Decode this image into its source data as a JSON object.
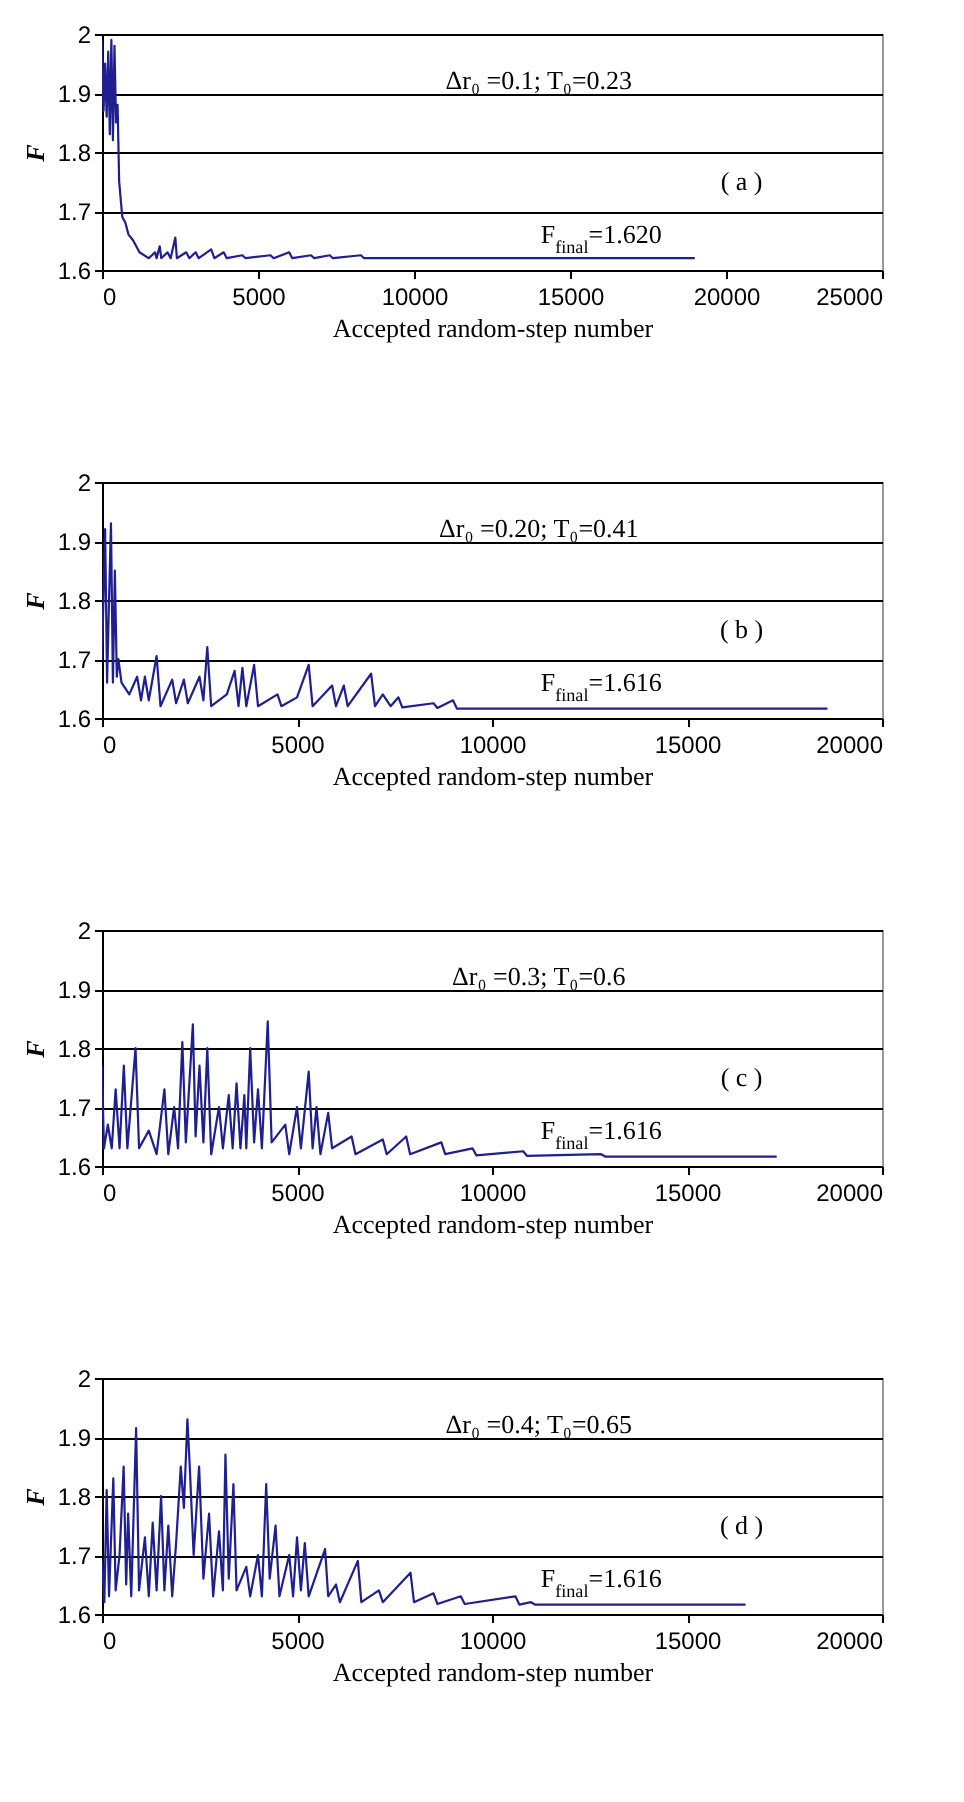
{
  "chart_data": [
    {
      "type": "line",
      "xlabel": "Accepted random-step number",
      "ylabel": "F",
      "color": "#1f1f8f",
      "grid": "y",
      "xlim": [
        0,
        25000
      ],
      "xticks": [
        0,
        5000,
        10000,
        15000,
        20000,
        25000
      ],
      "ylim": [
        1.6,
        2
      ],
      "yticks": [
        1.6,
        1.7,
        1.8,
        1.9,
        2
      ],
      "annotations": [
        "Δr₀ =0.1; T₀=0.23",
        "( a )",
        "F$_{final}$=1.620"
      ],
      "x": [
        0,
        50,
        100,
        150,
        200,
        250,
        300,
        350,
        400,
        450,
        500,
        550,
        650,
        750,
        850,
        1000,
        1200,
        1500,
        1700,
        1750,
        1850,
        1900,
        2100,
        2200,
        2350,
        2400,
        2700,
        2800,
        3000,
        3100,
        3500,
        3600,
        3900,
        4000,
        4500,
        4600,
        5400,
        5500,
        6000,
        6100,
        6700,
        6800,
        7300,
        7400,
        8300,
        8400,
        19000
      ],
      "values": [
        1.99,
        1.87,
        1.95,
        1.86,
        1.97,
        1.83,
        1.99,
        1.82,
        1.98,
        1.85,
        1.88,
        1.75,
        1.69,
        1.68,
        1.66,
        1.65,
        1.63,
        1.62,
        1.63,
        1.62,
        1.64,
        1.62,
        1.63,
        1.62,
        1.655,
        1.62,
        1.63,
        1.62,
        1.63,
        1.62,
        1.635,
        1.62,
        1.63,
        1.62,
        1.625,
        1.62,
        1.625,
        1.62,
        1.63,
        1.62,
        1.625,
        1.62,
        1.625,
        1.62,
        1.625,
        1.62,
        1.62
      ]
    },
    {
      "type": "line",
      "xlabel": "Accepted random-step number",
      "ylabel": "F",
      "color": "#1f1f8f",
      "grid": "y",
      "xlim": [
        0,
        20000
      ],
      "xticks": [
        0,
        5000,
        10000,
        15000,
        20000
      ],
      "ylim": [
        1.6,
        2
      ],
      "yticks": [
        1.6,
        1.7,
        1.8,
        1.9,
        2
      ],
      "annotations": [
        "Δr₀ =0.20; T₀=0.41",
        "( b )",
        "F$_{final}$=1.616"
      ],
      "x": [
        0,
        80,
        130,
        180,
        230,
        280,
        330,
        380,
        420,
        500,
        700,
        900,
        1000,
        1100,
        1200,
        1400,
        1500,
        1800,
        1900,
        2100,
        2200,
        2500,
        2600,
        2700,
        2800,
        3200,
        3400,
        3500,
        3600,
        3700,
        3900,
        4000,
        4500,
        4600,
        5000,
        5300,
        5400,
        5900,
        6000,
        6200,
        6300,
        6900,
        7000,
        7200,
        7400,
        7600,
        7700,
        8500,
        8600,
        9000,
        9100,
        18600
      ],
      "values": [
        1.7,
        1.92,
        1.66,
        1.8,
        1.93,
        1.66,
        1.85,
        1.67,
        1.7,
        1.66,
        1.64,
        1.67,
        1.63,
        1.67,
        1.63,
        1.705,
        1.62,
        1.665,
        1.625,
        1.665,
        1.625,
        1.67,
        1.63,
        1.72,
        1.62,
        1.64,
        1.68,
        1.62,
        1.685,
        1.62,
        1.69,
        1.62,
        1.64,
        1.62,
        1.635,
        1.69,
        1.62,
        1.655,
        1.62,
        1.655,
        1.62,
        1.675,
        1.62,
        1.64,
        1.62,
        1.635,
        1.618,
        1.625,
        1.617,
        1.63,
        1.616,
        1.616
      ]
    },
    {
      "type": "line",
      "xlabel": "Accepted random-step number",
      "ylabel": "F",
      "color": "#1f1f8f",
      "grid": "y",
      "xlim": [
        0,
        20000
      ],
      "xticks": [
        0,
        5000,
        10000,
        15000,
        20000
      ],
      "ylim": [
        1.6,
        2
      ],
      "yticks": [
        1.6,
        1.7,
        1.8,
        1.9,
        2
      ],
      "annotations": [
        "Δr₀ =0.3; T₀=0.6",
        "( c )",
        "F$_{final}$=1.616"
      ],
      "x": [
        0,
        50,
        150,
        250,
        350,
        450,
        560,
        650,
        860,
        950,
        1200,
        1400,
        1600,
        1700,
        1850,
        1950,
        2060,
        2150,
        2330,
        2400,
        2500,
        2600,
        2700,
        2800,
        3000,
        3100,
        3250,
        3350,
        3450,
        3550,
        3650,
        3700,
        3800,
        3900,
        4000,
        4100,
        4250,
        4350,
        4700,
        4800,
        5000,
        5100,
        5300,
        5400,
        5500,
        5600,
        5800,
        5900,
        6400,
        6500,
        7200,
        7300,
        7800,
        7900,
        8700,
        8800,
        9500,
        9600,
        10800,
        10900,
        12800,
        12900,
        17300
      ],
      "values": [
        1.77,
        1.63,
        1.67,
        1.63,
        1.73,
        1.63,
        1.77,
        1.63,
        1.8,
        1.63,
        1.66,
        1.62,
        1.73,
        1.62,
        1.7,
        1.63,
        1.81,
        1.64,
        1.84,
        1.65,
        1.77,
        1.64,
        1.8,
        1.62,
        1.7,
        1.63,
        1.72,
        1.63,
        1.74,
        1.63,
        1.72,
        1.63,
        1.8,
        1.64,
        1.73,
        1.63,
        1.845,
        1.64,
        1.67,
        1.62,
        1.7,
        1.63,
        1.76,
        1.63,
        1.7,
        1.62,
        1.69,
        1.63,
        1.65,
        1.62,
        1.645,
        1.62,
        1.65,
        1.62,
        1.64,
        1.62,
        1.63,
        1.618,
        1.625,
        1.617,
        1.62,
        1.616,
        1.616
      ]
    },
    {
      "type": "line",
      "xlabel": "Accepted random-step number",
      "ylabel": "F",
      "color": "#1f1f8f",
      "grid": "y",
      "xlim": [
        0,
        20000
      ],
      "xticks": [
        0,
        5000,
        10000,
        15000,
        20000
      ],
      "ylim": [
        1.6,
        2
      ],
      "yticks": [
        1.6,
        1.7,
        1.8,
        1.9,
        2
      ],
      "annotations": [
        "Δr₀ =0.4; T₀=0.65",
        "( d )",
        "F$_{final}$=1.616"
      ],
      "x": [
        0,
        60,
        120,
        180,
        290,
        350,
        450,
        555,
        620,
        670,
        750,
        875,
        950,
        1100,
        1200,
        1300,
        1400,
        1515,
        1600,
        1700,
        1800,
        1900,
        2020,
        2100,
        2190,
        2250,
        2350,
        2490,
        2600,
        2745,
        2850,
        3000,
        3100,
        3165,
        3250,
        3370,
        3450,
        3700,
        3800,
        4000,
        4100,
        4210,
        4300,
        4450,
        4550,
        4800,
        4900,
        5000,
        5100,
        5200,
        5300,
        5720,
        5800,
        6000,
        6100,
        6560,
        6650,
        7100,
        7200,
        7910,
        8000,
        8500,
        8600,
        9200,
        9300,
        10600,
        10700,
        11000,
        11100,
        16500
      ],
      "values": [
        1.69,
        1.62,
        1.81,
        1.63,
        1.83,
        1.64,
        1.7,
        1.85,
        1.65,
        1.77,
        1.63,
        1.915,
        1.64,
        1.73,
        1.63,
        1.755,
        1.64,
        1.8,
        1.64,
        1.75,
        1.63,
        1.72,
        1.85,
        1.78,
        1.93,
        1.85,
        1.7,
        1.85,
        1.66,
        1.77,
        1.63,
        1.74,
        1.64,
        1.87,
        1.66,
        1.82,
        1.64,
        1.68,
        1.63,
        1.7,
        1.63,
        1.82,
        1.66,
        1.75,
        1.63,
        1.7,
        1.63,
        1.73,
        1.64,
        1.72,
        1.63,
        1.71,
        1.63,
        1.65,
        1.62,
        1.69,
        1.62,
        1.64,
        1.62,
        1.67,
        1.62,
        1.635,
        1.617,
        1.63,
        1.617,
        1.63,
        1.616,
        1.62,
        1.616,
        1.616
      ]
    }
  ]
}
